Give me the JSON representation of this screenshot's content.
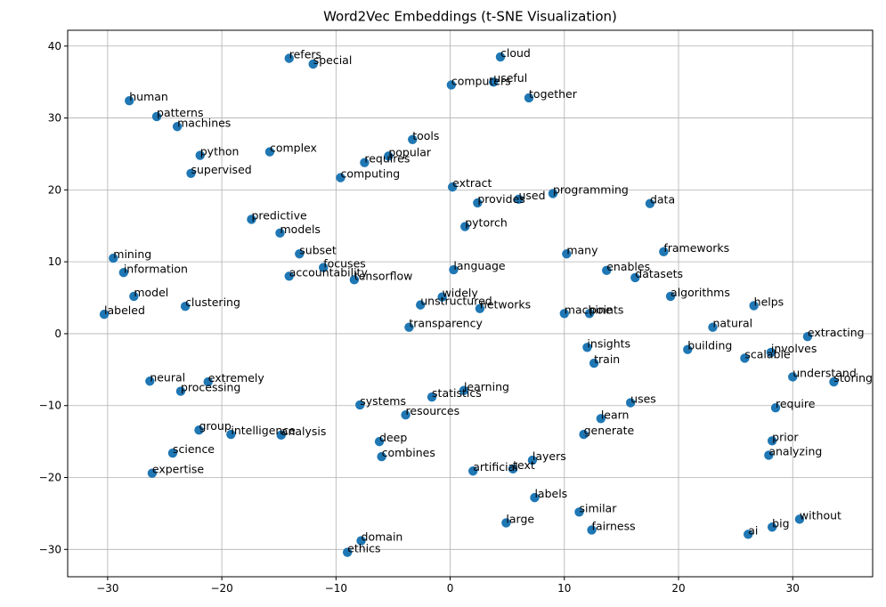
{
  "chart_data": {
    "type": "scatter",
    "title": "Word2Vec Embeddings (t-SNE Visualization)",
    "xlabel": "",
    "ylabel": "",
    "xlim": [
      -33.5,
      37
    ],
    "ylim": [
      -33.8,
      42.2
    ],
    "xticks": [
      -30,
      -20,
      -10,
      0,
      10,
      20,
      30
    ],
    "yticks": [
      -30,
      -20,
      -10,
      0,
      10,
      20,
      30,
      40
    ],
    "xtick_labels": [
      "−30",
      "−20",
      "−10",
      "0",
      "10",
      "20",
      "30"
    ],
    "ytick_labels": [
      "−30",
      "−20",
      "−10",
      "0",
      "10",
      "20",
      "30",
      "40"
    ],
    "grid": true,
    "color": "#1f77b4",
    "points": [
      {
        "word": "cloud",
        "x": 4.4,
        "y": 38.5
      },
      {
        "word": "useful",
        "x": 3.8,
        "y": 35.0
      },
      {
        "word": "computers",
        "x": 0.1,
        "y": 34.6
      },
      {
        "word": "together",
        "x": 6.9,
        "y": 32.8
      },
      {
        "word": "refers",
        "x": -14.1,
        "y": 38.3
      },
      {
        "word": "special",
        "x": -12.0,
        "y": 37.5
      },
      {
        "word": "human",
        "x": -28.1,
        "y": 32.4
      },
      {
        "word": "patterns",
        "x": -25.7,
        "y": 30.2
      },
      {
        "word": "machines",
        "x": -23.9,
        "y": 28.8
      },
      {
        "word": "python",
        "x": -21.9,
        "y": 24.8
      },
      {
        "word": "supervised",
        "x": -22.7,
        "y": 22.3
      },
      {
        "word": "complex",
        "x": -15.8,
        "y": 25.3
      },
      {
        "word": "tools",
        "x": -3.3,
        "y": 27.0
      },
      {
        "word": "popular",
        "x": -5.4,
        "y": 24.7
      },
      {
        "word": "requires",
        "x": -7.5,
        "y": 23.8
      },
      {
        "word": "computing",
        "x": -9.6,
        "y": 21.7
      },
      {
        "word": "extract",
        "x": 0.2,
        "y": 20.4
      },
      {
        "word": "provides",
        "x": 2.4,
        "y": 18.2
      },
      {
        "word": "used",
        "x": 6.0,
        "y": 18.7
      },
      {
        "word": "programming",
        "x": 9.0,
        "y": 19.5
      },
      {
        "word": "data",
        "x": 17.5,
        "y": 18.1
      },
      {
        "word": "predictive",
        "x": -17.4,
        "y": 15.9
      },
      {
        "word": "models",
        "x": -14.9,
        "y": 14.0
      },
      {
        "word": "pytorch",
        "x": 1.3,
        "y": 14.9
      },
      {
        "word": "mining",
        "x": -29.5,
        "y": 10.5
      },
      {
        "word": "information",
        "x": -28.6,
        "y": 8.5
      },
      {
        "word": "subset",
        "x": -13.2,
        "y": 11.1
      },
      {
        "word": "focuses",
        "x": -11.1,
        "y": 9.2
      },
      {
        "word": "accountability",
        "x": -14.1,
        "y": 8.0
      },
      {
        "word": "tensorflow",
        "x": -8.4,
        "y": 7.5
      },
      {
        "word": "language",
        "x": 0.3,
        "y": 8.9
      },
      {
        "word": "many",
        "x": 10.2,
        "y": 11.1
      },
      {
        "word": "frameworks",
        "x": 18.7,
        "y": 11.4
      },
      {
        "word": "enables",
        "x": 13.7,
        "y": 8.8
      },
      {
        "word": "datasets",
        "x": 16.2,
        "y": 7.8
      },
      {
        "word": "algorithms",
        "x": 19.3,
        "y": 5.2
      },
      {
        "word": "helps",
        "x": 26.6,
        "y": 3.9
      },
      {
        "word": "model",
        "x": -27.7,
        "y": 5.2
      },
      {
        "word": "clustering",
        "x": -23.2,
        "y": 3.8
      },
      {
        "word": "labeled",
        "x": -30.3,
        "y": 2.7
      },
      {
        "word": "widely",
        "x": -0.7,
        "y": 5.1
      },
      {
        "word": "unstructured",
        "x": -2.6,
        "y": 4.0
      },
      {
        "word": "networks",
        "x": 2.6,
        "y": 3.5
      },
      {
        "word": "machine",
        "x": 10.0,
        "y": 2.8
      },
      {
        "word": "points",
        "x": 12.2,
        "y": 2.8
      },
      {
        "word": "transparency",
        "x": -3.6,
        "y": 0.9
      },
      {
        "word": "natural",
        "x": 23.0,
        "y": 0.9
      },
      {
        "word": "extracting",
        "x": 31.3,
        "y": -0.4
      },
      {
        "word": "insights",
        "x": 12.0,
        "y": -1.9
      },
      {
        "word": "building",
        "x": 20.8,
        "y": -2.2
      },
      {
        "word": "involves",
        "x": 28.1,
        "y": -2.6
      },
      {
        "word": "scalable",
        "x": 25.8,
        "y": -3.4
      },
      {
        "word": "train",
        "x": 12.6,
        "y": -4.1
      },
      {
        "word": "understand",
        "x": 30.0,
        "y": -6.0
      },
      {
        "word": "storing",
        "x": 33.6,
        "y": -6.7
      },
      {
        "word": "neural",
        "x": -26.3,
        "y": -6.6
      },
      {
        "word": "extremely",
        "x": -21.2,
        "y": -6.7
      },
      {
        "word": "processing",
        "x": -23.6,
        "y": -8.0
      },
      {
        "word": "learning",
        "x": 1.2,
        "y": -7.9
      },
      {
        "word": "statistics",
        "x": -1.6,
        "y": -8.8
      },
      {
        "word": "systems",
        "x": -7.9,
        "y": -9.9
      },
      {
        "word": "uses",
        "x": 15.8,
        "y": -9.6
      },
      {
        "word": "require",
        "x": 28.5,
        "y": -10.3
      },
      {
        "word": "resources",
        "x": -3.9,
        "y": -11.3
      },
      {
        "word": "learn",
        "x": 13.2,
        "y": -11.8
      },
      {
        "word": "group",
        "x": -22.0,
        "y": -13.4
      },
      {
        "word": "intelligence",
        "x": -19.2,
        "y": -14.0
      },
      {
        "word": "analysis",
        "x": -14.8,
        "y": -14.1
      },
      {
        "word": "generate",
        "x": 11.7,
        "y": -14.0
      },
      {
        "word": "deep",
        "x": -6.2,
        "y": -15.0
      },
      {
        "word": "prior",
        "x": 28.2,
        "y": -14.9
      },
      {
        "word": "science",
        "x": -24.3,
        "y": -16.6
      },
      {
        "word": "combines",
        "x": -6.0,
        "y": -17.1
      },
      {
        "word": "analyzing",
        "x": 27.9,
        "y": -16.9
      },
      {
        "word": "layers",
        "x": 7.2,
        "y": -17.6
      },
      {
        "word": "text",
        "x": 5.5,
        "y": -18.8
      },
      {
        "word": "artificial",
        "x": 2.0,
        "y": -19.1
      },
      {
        "word": "expertise",
        "x": -26.1,
        "y": -19.4
      },
      {
        "word": "labels",
        "x": 7.4,
        "y": -22.8
      },
      {
        "word": "similar",
        "x": 11.3,
        "y": -24.8
      },
      {
        "word": "large",
        "x": 4.9,
        "y": -26.3
      },
      {
        "word": "fairness",
        "x": 12.4,
        "y": -27.3
      },
      {
        "word": "without",
        "x": 30.6,
        "y": -25.8
      },
      {
        "word": "big",
        "x": 28.2,
        "y": -26.9
      },
      {
        "word": "ai",
        "x": 26.1,
        "y": -27.9
      },
      {
        "word": "domain",
        "x": -7.8,
        "y": -28.8
      },
      {
        "word": "ethics",
        "x": -9.0,
        "y": -30.4
      }
    ]
  }
}
